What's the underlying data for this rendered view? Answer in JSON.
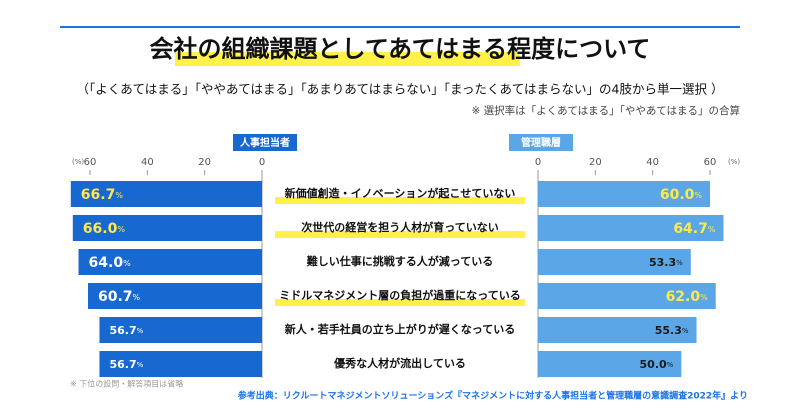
{
  "chart_data": {
    "type": "butterfly-bar",
    "title": "会社の組織課題としてあてはまる程度について",
    "subtitle": "（「よくあてはまる」「ややあてはまる」「あまりあてはまらない」「まったくあてはまらない」の4肢から単一選択 ）",
    "note": "※ 選択率は「よくあてはまる」「ややあてはまる」の合算",
    "footnote": "※ 下位の設問・解答項目は省略",
    "source": "参考出典：リクルートマネジメントソリューションズ『マネジメントに対する人事担当者と管理職層の意識調査2022年』より",
    "unit": "(%)",
    "categories": [
      "新価値創造・イノベーションが起こせていない",
      "次世代の経営を担う人材が育っていない",
      "難しい仕事に挑戦する人が減っている",
      "ミドルマネジメント層の負担が過重になっている",
      "新人・若手社員の立ち上がりが遅くなっている",
      "優秀な人材が流出している"
    ],
    "highlighted_categories": [
      0,
      1,
      3
    ],
    "series": [
      {
        "name": "人事担当者",
        "color": "#1769d1",
        "values": [
          66.7,
          66.0,
          64.0,
          60.7,
          56.7,
          56.7
        ],
        "value_labels": [
          "66.7%",
          "66.0%",
          "64.0%",
          "60.7%",
          "56.7%",
          "56.7%"
        ],
        "label_colors": [
          "#ffe94a",
          "#ffe94a",
          "#ffffff",
          "#ffffff",
          "#ffffff",
          "#ffffff"
        ]
      },
      {
        "name": "管理職層",
        "color": "#5aa6e6",
        "values": [
          60.0,
          64.7,
          53.3,
          62.0,
          55.3,
          50.0
        ],
        "value_labels": [
          "60.0%",
          "64.7%",
          "53.3%",
          "62.0%",
          "55.3%",
          "50.0%"
        ],
        "label_colors": [
          "#ffe94a",
          "#ffe94a",
          "#1a1a1a",
          "#ffe94a",
          "#1a1a1a",
          "#1a1a1a"
        ]
      }
    ],
    "xlim": [
      0,
      60
    ],
    "xticks": [
      0,
      20,
      40,
      60
    ]
  }
}
